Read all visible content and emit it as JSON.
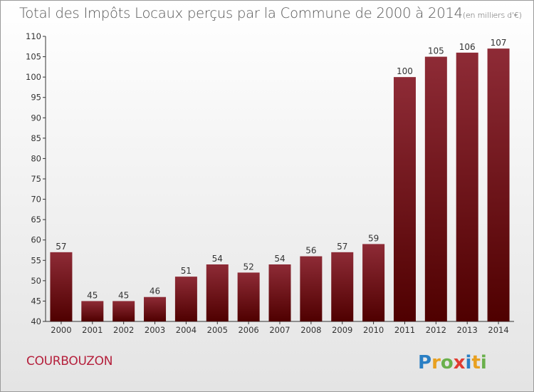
{
  "header": {
    "title": "Total des Impôts Locaux perçus par la Commune de 2000 à 2014",
    "unit": "(en milliers d'€)"
  },
  "footer": {
    "commune": "COURBOUZON",
    "logo_text": "Proxiti"
  },
  "colors": {
    "bar_top": "#8e2b36",
    "bar_bottom": "#4f0000",
    "commune_text": "#b5203c"
  },
  "chart_data": {
    "type": "bar",
    "title": "Total des Impôts Locaux perçus par la Commune de 2000 à 2014",
    "xlabel": "",
    "ylabel": "",
    "categories": [
      "2000",
      "2001",
      "2002",
      "2003",
      "2004",
      "2005",
      "2006",
      "2007",
      "2008",
      "2009",
      "2010",
      "2011",
      "2012",
      "2013",
      "2014"
    ],
    "values": [
      57,
      45,
      45,
      46,
      51,
      54,
      52,
      54,
      56,
      57,
      59,
      100,
      105,
      106,
      107
    ],
    "ylim": [
      40,
      110
    ],
    "yticks": [
      40,
      45,
      50,
      55,
      60,
      65,
      70,
      75,
      80,
      85,
      90,
      95,
      100,
      105,
      110
    ],
    "grid": false,
    "legend": "none"
  }
}
